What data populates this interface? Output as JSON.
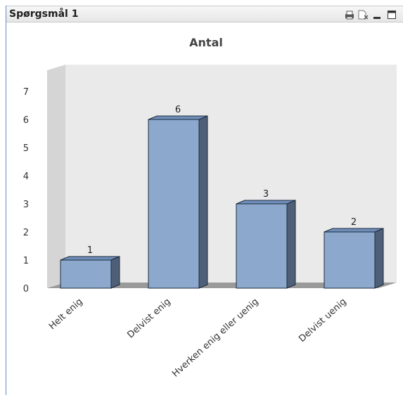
{
  "window": {
    "caption_title": "Spørgsmål 1"
  },
  "caption_icons": [
    "print-icon",
    "clear-selection-icon",
    "minimize-icon",
    "maximize-icon"
  ],
  "colors": {
    "bar_front": "#8ca9cd",
    "bar_side": "#4f5f78",
    "bar_top": "#6e8eb9",
    "wall": "#eaeaea",
    "floor_shadow": "#9a9a9a"
  },
  "chart_data": {
    "type": "bar",
    "title": "Antal",
    "categories": [
      "Helt enig",
      "Delvist enig",
      "Hverken enig eller uenig",
      "Delvist uenig"
    ],
    "values": [
      1,
      6,
      3,
      2
    ],
    "data_labels": [
      "1",
      "6",
      "3",
      "2"
    ],
    "yticks": [
      "0",
      "1",
      "2",
      "3",
      "4",
      "5",
      "6",
      "7"
    ],
    "ylim": [
      0,
      7
    ],
    "xlabel": "",
    "ylabel": "",
    "grid": false,
    "legend": "none",
    "style": "3d"
  }
}
